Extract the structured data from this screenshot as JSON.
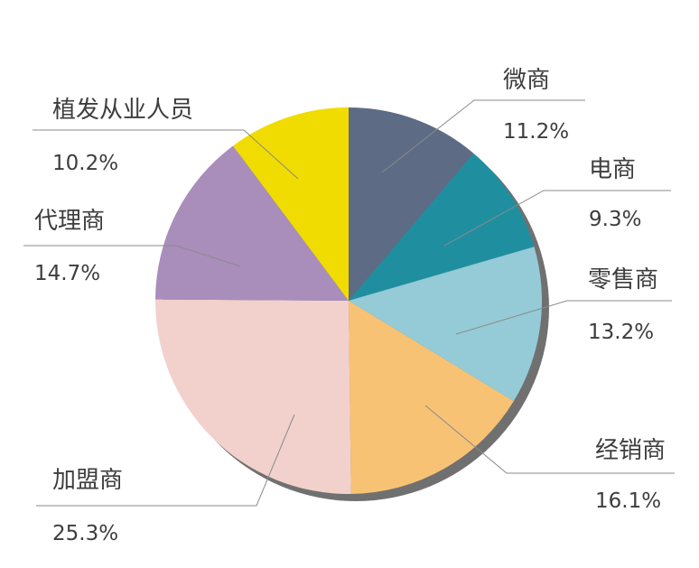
{
  "chart_data": {
    "type": "pie",
    "title": "",
    "slices": [
      {
        "label": "微商",
        "value": 11.2,
        "text": "11.2%",
        "color": "#5d6b85"
      },
      {
        "label": "电商",
        "value": 9.3,
        "text": "9.3%",
        "color": "#1f8fa0"
      },
      {
        "label": "零售商",
        "value": 13.2,
        "text": "13.2%",
        "color": "#94cbd6"
      },
      {
        "label": "经销商",
        "value": 16.1,
        "text": "16.1%",
        "color": "#f8c275"
      },
      {
        "label": "加盟商",
        "value": 25.3,
        "text": "25.3%",
        "color": "#f2d1cc"
      },
      {
        "label": "代理商",
        "value": 14.7,
        "text": "14.7%",
        "color": "#a98dbb"
      },
      {
        "label": "植发从业人员",
        "value": 10.2,
        "text": "10.2%",
        "color": "#f0dc00"
      }
    ],
    "shadow_color": "#707070"
  }
}
